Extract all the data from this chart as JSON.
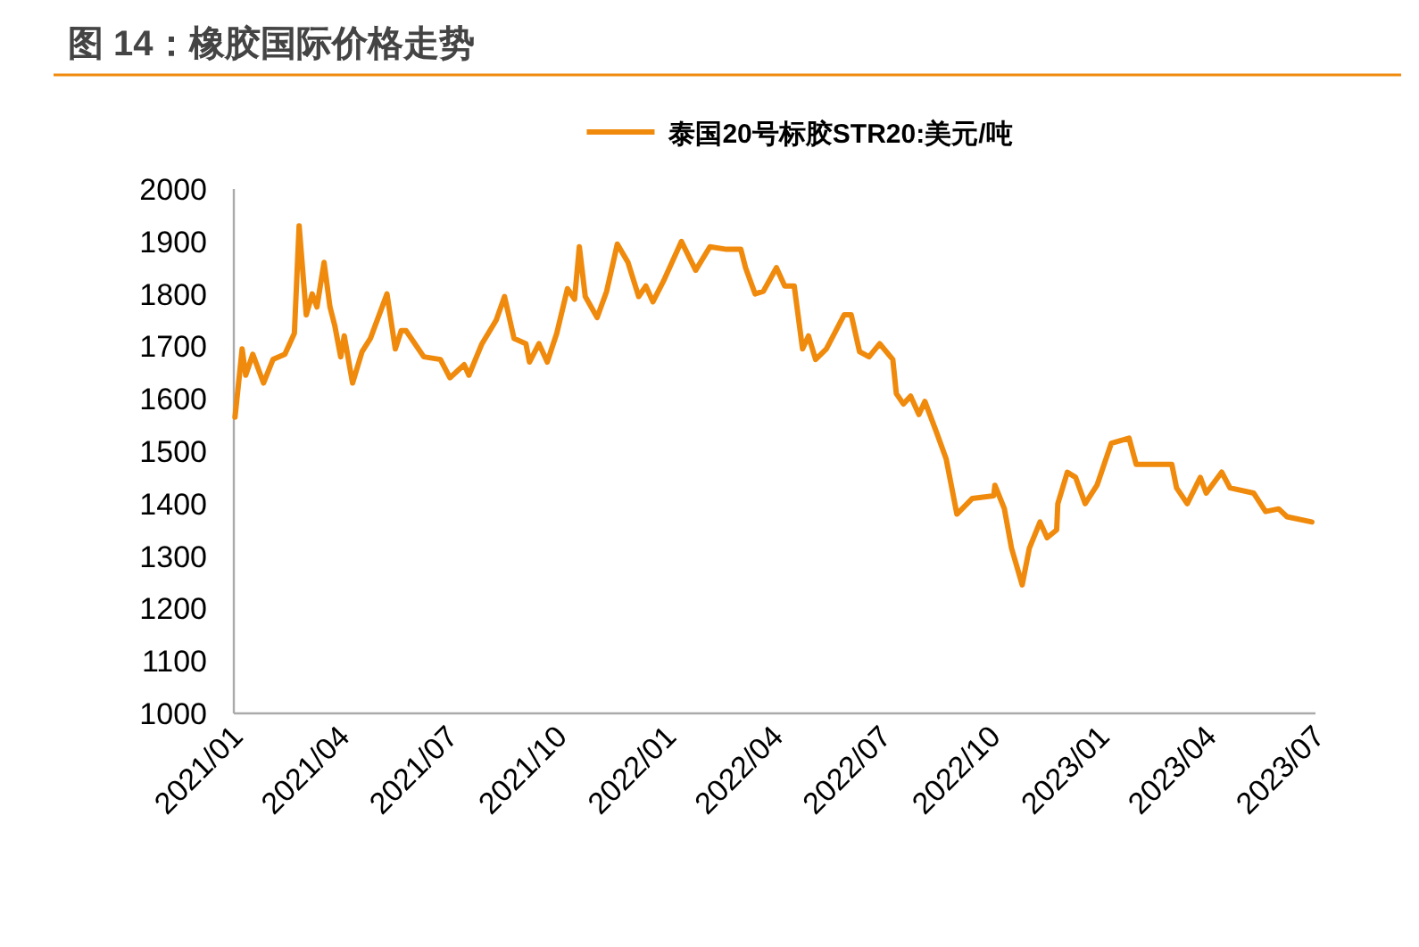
{
  "chart_data": {
    "type": "line",
    "title": "图 14：橡胶国际价格走势",
    "series": [
      {
        "name": "泰国20号标胶STR20:美元/吨",
        "color": "#f08a0c",
        "x": [
          "2021-01-02",
          "2021-01-08",
          "2021-01-11",
          "2021-01-17",
          "2021-01-26",
          "2021-02-03",
          "2021-02-13",
          "2021-02-21",
          "2021-02-25",
          "2021-03-03",
          "2021-03-08",
          "2021-03-12",
          "2021-03-18",
          "2021-03-23",
          "2021-03-27",
          "2021-04-01",
          "2021-04-04",
          "2021-04-11",
          "2021-04-19",
          "2021-04-26",
          "2021-05-10",
          "2021-05-17",
          "2021-05-22",
          "2021-05-26",
          "2021-06-10",
          "2021-06-24",
          "2021-07-02",
          "2021-07-14",
          "2021-07-18",
          "2021-07-29",
          "2021-08-10",
          "2021-08-17",
          "2021-08-25",
          "2021-09-04",
          "2021-09-07",
          "2021-09-15",
          "2021-09-22",
          "2021-09-30",
          "2021-10-09",
          "2021-10-15",
          "2021-10-19",
          "2021-10-24",
          "2021-11-03",
          "2021-11-11",
          "2021-11-20",
          "2021-11-29",
          "2021-12-08",
          "2021-12-14",
          "2021-12-20",
          "2021-12-29",
          "2022-01-13",
          "2022-01-25",
          "2022-02-06",
          "2022-02-20",
          "2022-03-04",
          "2022-03-08",
          "2022-03-16",
          "2022-03-23",
          "2022-04-03",
          "2022-04-10",
          "2022-04-18",
          "2022-04-25",
          "2022-04-30",
          "2022-05-06",
          "2022-05-15",
          "2022-05-22",
          "2022-05-30",
          "2022-06-05",
          "2022-06-12",
          "2022-06-20",
          "2022-06-29",
          "2022-07-10",
          "2022-07-13",
          "2022-07-19",
          "2022-07-25",
          "2022-08-01",
          "2022-08-06",
          "2022-08-16",
          "2022-08-24",
          "2022-09-02",
          "2022-09-15",
          "2022-10-03",
          "2022-10-04",
          "2022-10-12",
          "2022-10-18",
          "2022-10-27",
          "2022-11-02",
          "2022-11-11",
          "2022-11-17",
          "2022-11-25",
          "2022-11-26",
          "2022-12-04",
          "2022-12-11",
          "2022-12-19",
          "2022-12-29",
          "2023-01-10",
          "2023-01-25",
          "2023-01-31",
          "2023-03-02",
          "2023-03-06",
          "2023-03-15",
          "2023-03-26",
          "2023-03-31",
          "2023-04-13",
          "2023-04-20",
          "2023-05-10",
          "2023-05-20",
          "2023-05-31",
          "2023-06-07",
          "2023-06-28"
        ],
        "values": [
          1565,
          1695,
          1645,
          1685,
          1630,
          1675,
          1685,
          1725,
          1930,
          1760,
          1800,
          1775,
          1860,
          1775,
          1740,
          1680,
          1720,
          1630,
          1690,
          1715,
          1800,
          1695,
          1730,
          1730,
          1680,
          1675,
          1640,
          1665,
          1645,
          1705,
          1750,
          1795,
          1715,
          1705,
          1670,
          1705,
          1670,
          1725,
          1810,
          1790,
          1890,
          1795,
          1755,
          1805,
          1895,
          1860,
          1795,
          1815,
          1785,
          1825,
          1900,
          1845,
          1890,
          1885,
          1885,
          1850,
          1800,
          1805,
          1850,
          1815,
          1815,
          1695,
          1720,
          1675,
          1695,
          1725,
          1760,
          1760,
          1690,
          1680,
          1705,
          1675,
          1610,
          1590,
          1605,
          1570,
          1595,
          1535,
          1485,
          1380,
          1410,
          1415,
          1435,
          1390,
          1315,
          1245,
          1315,
          1365,
          1335,
          1350,
          1400,
          1460,
          1450,
          1400,
          1435,
          1515,
          1525,
          1475,
          1475,
          1430,
          1400,
          1450,
          1420,
          1460,
          1430,
          1420,
          1385,
          1390,
          1375,
          1365
        ]
      }
    ],
    "xlim": [
      "2021-01-01",
      "2023-07-01"
    ],
    "xticks": [
      {
        "value": "2021-01-01",
        "label": "2021/01"
      },
      {
        "value": "2021-04-01",
        "label": "2021/04"
      },
      {
        "value": "2021-07-01",
        "label": "2021/07"
      },
      {
        "value": "2021-10-01",
        "label": "2021/10"
      },
      {
        "value": "2022-01-01",
        "label": "2022/01"
      },
      {
        "value": "2022-04-01",
        "label": "2022/04"
      },
      {
        "value": "2022-07-01",
        "label": "2022/07"
      },
      {
        "value": "2022-10-01",
        "label": "2022/10"
      },
      {
        "value": "2023-01-01",
        "label": "2023/01"
      },
      {
        "value": "2023-04-01",
        "label": "2023/04"
      },
      {
        "value": "2023-07-01",
        "label": "2023/07"
      }
    ],
    "ylim": [
      1000,
      2000
    ],
    "yticks": [
      1000,
      1100,
      1200,
      1300,
      1400,
      1500,
      1600,
      1700,
      1800,
      1900,
      2000
    ],
    "grid": false,
    "legend": "top",
    "marker": "none",
    "line_style": "solid"
  }
}
